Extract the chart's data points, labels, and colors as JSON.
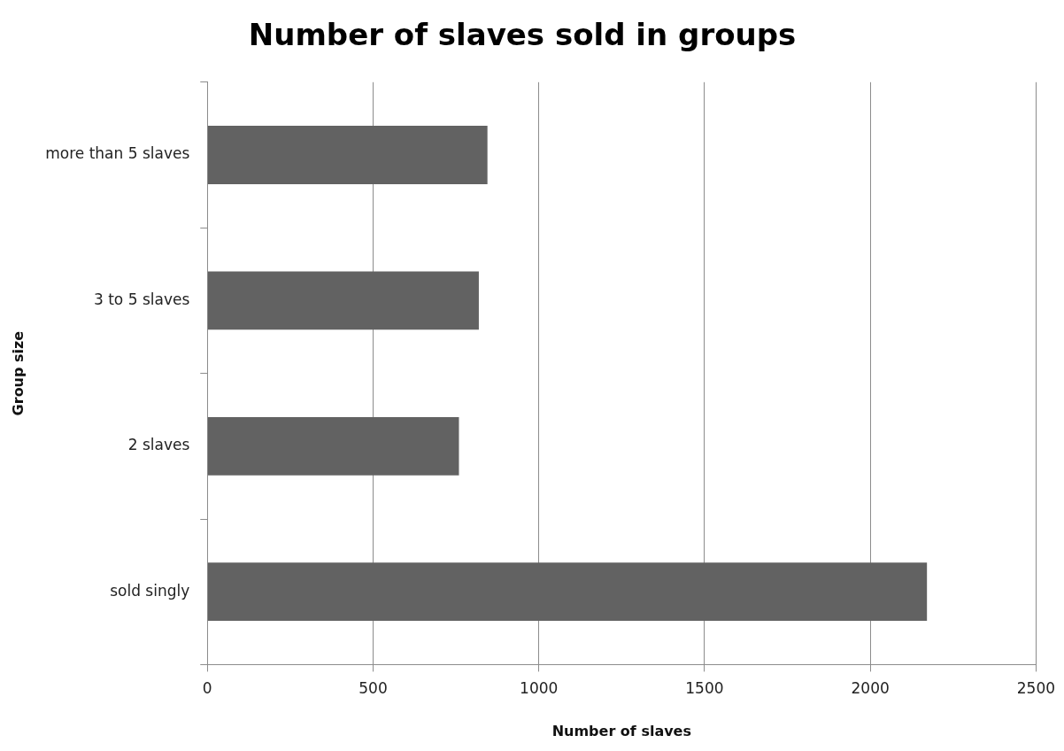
{
  "chart_data": {
    "type": "bar",
    "orientation": "horizontal",
    "title": "Number of slaves sold in groups",
    "xlabel": "Number of slaves",
    "ylabel": "Group size",
    "categories": [
      "more than 5 slaves",
      "3 to 5 slaves",
      "2 slaves",
      "sold singly"
    ],
    "values": [
      845,
      819,
      759,
      2171
    ],
    "color": "#626262",
    "xlim": [
      0,
      2500
    ],
    "xticks": [
      0,
      500,
      1000,
      1500,
      2000,
      2500
    ],
    "grid": "x",
    "legend": false
  }
}
